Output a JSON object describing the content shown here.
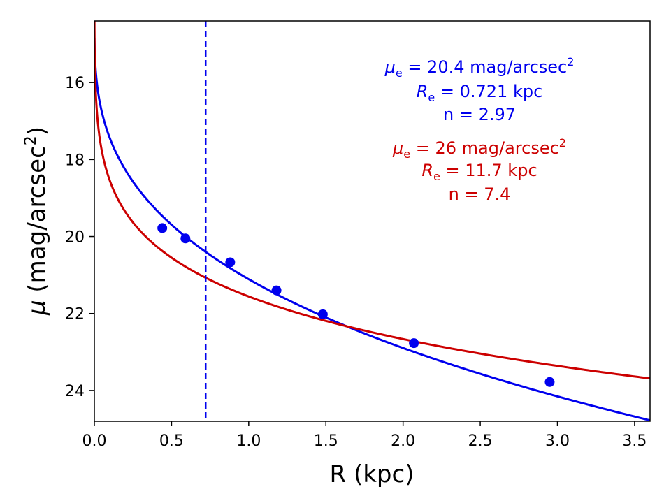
{
  "chart_data": {
    "type": "scatter",
    "title": "",
    "xlabel": "R (kpc)",
    "ylabel_symbol": "μ",
    "ylabel_unit_prefix": " (mag/arcsec",
    "ylabel_unit_sup": "2",
    "ylabel_unit_suffix": ")",
    "xlim": [
      0.0,
      3.6
    ],
    "ylim": [
      24.8,
      14.4
    ],
    "y_inverted": true,
    "grid": false,
    "xticks": [
      0.0,
      0.5,
      1.0,
      1.5,
      2.0,
      2.5,
      3.0,
      3.5
    ],
    "xtick_labels": [
      "0.0",
      "0.5",
      "1.0",
      "1.5",
      "2.0",
      "2.5",
      "3.0",
      "3.5"
    ],
    "yticks": [
      16,
      18,
      20,
      22,
      24
    ],
    "ytick_labels": [
      "16",
      "18",
      "20",
      "22",
      "24"
    ],
    "points": {
      "name": "data",
      "color": "#0000ee",
      "x": [
        0.44,
        0.59,
        0.88,
        1.18,
        1.48,
        2.07,
        2.95
      ],
      "y": [
        19.78,
        20.05,
        20.67,
        21.4,
        22.02,
        22.77,
        23.78
      ]
    },
    "series": [
      {
        "name": "sersic-fit-1",
        "color": "#0000ee",
        "mu_e": 20.4,
        "R_e": 0.721,
        "n": 2.97
      },
      {
        "name": "sersic-fit-2",
        "color": "#cc0000",
        "mu_e": 26,
        "R_e": 11.7,
        "n": 7.4
      }
    ],
    "vline": {
      "x": 0.721,
      "color": "#0000ee",
      "style": "dashed"
    },
    "annotations": [
      {
        "color": "#0000ee",
        "mu_symbol": "μ",
        "mu_sub": "e",
        "mu_rest": " = 20.4 mag/arcsec",
        "mu_sup": "2",
        "re_symbol": "R",
        "re_sub": "e",
        "re_rest": " = 0.721 kpc",
        "n_text": "n = 2.97"
      },
      {
        "color": "#cc0000",
        "mu_symbol": "μ",
        "mu_sub": "e",
        "mu_rest": " = 26 mag/arcsec",
        "mu_sup": "2",
        "re_symbol": "R",
        "re_sub": "e",
        "re_rest": " = 11.7 kpc",
        "n_text": "n = 7.4"
      }
    ]
  }
}
